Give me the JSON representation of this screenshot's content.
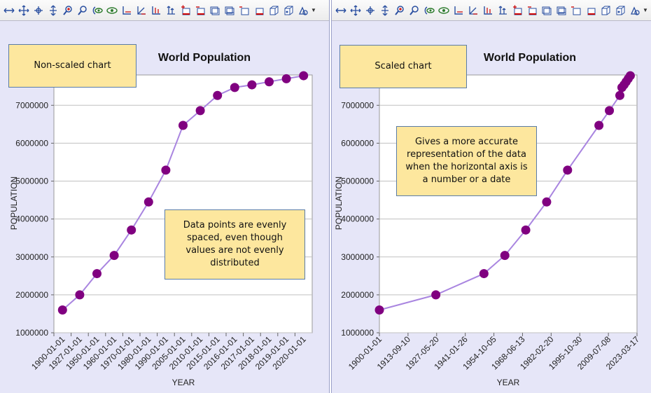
{
  "charts": [
    {
      "id": "left",
      "label_box": "Non-scaled chart",
      "note_box": "Data points are evenly spaced, even though values are not evenly distributed",
      "chart_data": {
        "type": "line",
        "title": "World Population",
        "xlabel": "YEAR",
        "ylabel": "POPULATION",
        "x_scale": "category",
        "ylim": [
          1000000,
          7800000
        ],
        "yticks": [
          1000000,
          2000000,
          3000000,
          4000000,
          5000000,
          6000000,
          7000000
        ],
        "grid": true,
        "categories": [
          "1900-01-01",
          "1927-01-01",
          "1950-01-01",
          "1960-01-01",
          "1970-01-01",
          "1980-01-01",
          "1990-01-01",
          "2005-01-01",
          "2010-01-01",
          "2015-01-01",
          "2016-01-01",
          "2017-01-01",
          "2018-01-01",
          "2019-01-01",
          "2020-01-01"
        ],
        "values": [
          1600000,
          2000000,
          2560000,
          3040000,
          3710000,
          4450000,
          5290000,
          6470000,
          6860000,
          7260000,
          7470000,
          7540000,
          7620000,
          7700000,
          7780000
        ],
        "color": "#800080",
        "line_color": "#a985e0"
      }
    },
    {
      "id": "right",
      "label_box": "Scaled chart",
      "note_box": "Gives a more accurate representation of the data when the horizontal axis is a number or a date",
      "chart_data": {
        "type": "line",
        "title": "World Population",
        "xlabel": "YEAR",
        "ylabel": "POPULATION",
        "x_scale": "time",
        "ylim": [
          1000000,
          7800000
        ],
        "yticks": [
          1000000,
          2000000,
          3000000,
          4000000,
          5000000,
          6000000,
          7000000
        ],
        "xlim": [
          "1900-01-01",
          "2023-03-17"
        ],
        "xticks": [
          "1900-01-01",
          "1913-09-10",
          "1927-05-20",
          "1941-01-26",
          "1954-10-05",
          "1968-06-13",
          "1982-02-20",
          "1995-10-30",
          "2009-07-08",
          "2023-03-17"
        ],
        "grid": true,
        "x": [
          "1900-01-01",
          "1927-01-01",
          "1950-01-01",
          "1960-01-01",
          "1970-01-01",
          "1980-01-01",
          "1990-01-01",
          "2005-01-01",
          "2010-01-01",
          "2015-01-01",
          "2016-01-01",
          "2017-01-01",
          "2018-01-01",
          "2019-01-01",
          "2020-01-01"
        ],
        "values": [
          1600000,
          2000000,
          2560000,
          3040000,
          3710000,
          4450000,
          5290000,
          6470000,
          6860000,
          7260000,
          7470000,
          7540000,
          7620000,
          7700000,
          7780000
        ],
        "color": "#800080",
        "line_color": "#a985e0"
      }
    }
  ],
  "toolbar": {
    "buttons": [
      {
        "name": "pan-x-icon"
      },
      {
        "name": "pan-xy-icon"
      },
      {
        "name": "move-point-icon"
      },
      {
        "name": "pan-y-icon"
      },
      {
        "name": "zoom-in-icon"
      },
      {
        "name": "zoom-out-icon"
      },
      {
        "name": "rotate-view-icon"
      },
      {
        "name": "view-eye-icon"
      },
      {
        "name": "axis-x-icon"
      },
      {
        "name": "axis-xy-icon"
      },
      {
        "name": "axis-y-icon"
      },
      {
        "name": "axis-arrows-icon"
      },
      {
        "name": "add-red-icon"
      },
      {
        "name": "remove-red-icon"
      },
      {
        "name": "window-icon"
      },
      {
        "name": "window-alt-icon"
      },
      {
        "name": "window-close-icon"
      },
      {
        "name": "window-red-icon"
      },
      {
        "name": "box3d-icon"
      },
      {
        "name": "box3d-alt-icon"
      },
      {
        "name": "settings-icon"
      }
    ]
  }
}
